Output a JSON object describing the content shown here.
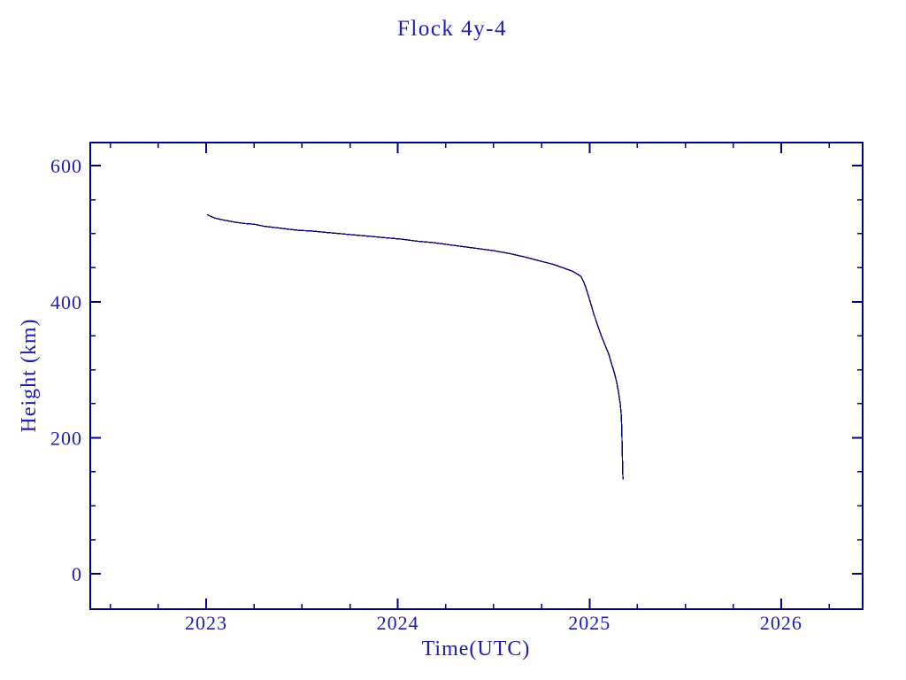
{
  "page": {
    "background": "#ffffff"
  },
  "chart_data": {
    "type": "line",
    "title": "Flock 4y-4",
    "xlabel": "Time(UTC)",
    "ylabel": "Height (km)",
    "x_ticks": [
      2023,
      2024,
      2025,
      2026
    ],
    "x_tick_labels": [
      "2023",
      "2024",
      "2025",
      "2026"
    ],
    "x_minor_step": 0.25,
    "y_ticks": [
      0,
      200,
      400,
      600
    ],
    "y_tick_labels": [
      "0",
      "200",
      "400",
      "600"
    ],
    "y_minor_step": 50,
    "xlim": [
      2022.395,
      2026.425
    ],
    "ylim": [
      -52,
      634
    ],
    "grid": false,
    "colors": {
      "text": "#1c1cb4",
      "axis": "#00007d",
      "line": "#000070",
      "background": "#ffffff"
    },
    "series": [
      {
        "name": "height",
        "points": [
          [
            2023.005,
            528
          ],
          [
            2023.02,
            526
          ],
          [
            2023.045,
            523
          ],
          [
            2023.075,
            521
          ],
          [
            2023.11,
            519
          ],
          [
            2023.15,
            517
          ],
          [
            2023.2,
            515
          ],
          [
            2023.25,
            514
          ],
          [
            2023.3,
            511
          ],
          [
            2023.36,
            509
          ],
          [
            2023.42,
            507
          ],
          [
            2023.48,
            505
          ],
          [
            2023.55,
            504
          ],
          [
            2023.62,
            502
          ],
          [
            2023.7,
            500
          ],
          [
            2023.78,
            498
          ],
          [
            2023.86,
            496
          ],
          [
            2023.94,
            494
          ],
          [
            2024.02,
            492
          ],
          [
            2024.1,
            489
          ],
          [
            2024.18,
            487
          ],
          [
            2024.26,
            484
          ],
          [
            2024.34,
            481
          ],
          [
            2024.42,
            478
          ],
          [
            2024.5,
            475
          ],
          [
            2024.58,
            471
          ],
          [
            2024.66,
            466
          ],
          [
            2024.74,
            460
          ],
          [
            2024.81,
            455
          ],
          [
            2024.87,
            449
          ],
          [
            2024.91,
            445
          ],
          [
            2024.94,
            440
          ],
          [
            2024.955,
            437
          ],
          [
            2024.97,
            429
          ],
          [
            2024.983,
            419
          ],
          [
            2024.995,
            408
          ],
          [
            2025.008,
            396
          ],
          [
            2025.022,
            382
          ],
          [
            2025.04,
            367
          ],
          [
            2025.06,
            351
          ],
          [
            2025.08,
            337
          ],
          [
            2025.1,
            323
          ],
          [
            2025.115,
            309
          ],
          [
            2025.13,
            295
          ],
          [
            2025.142,
            281
          ],
          [
            2025.152,
            266
          ],
          [
            2025.16,
            250
          ],
          [
            2025.165,
            234
          ],
          [
            2025.168,
            216
          ],
          [
            2025.17,
            193
          ],
          [
            2025.1715,
            170
          ],
          [
            2025.173,
            150
          ],
          [
            2025.175,
            139
          ]
        ]
      }
    ]
  }
}
